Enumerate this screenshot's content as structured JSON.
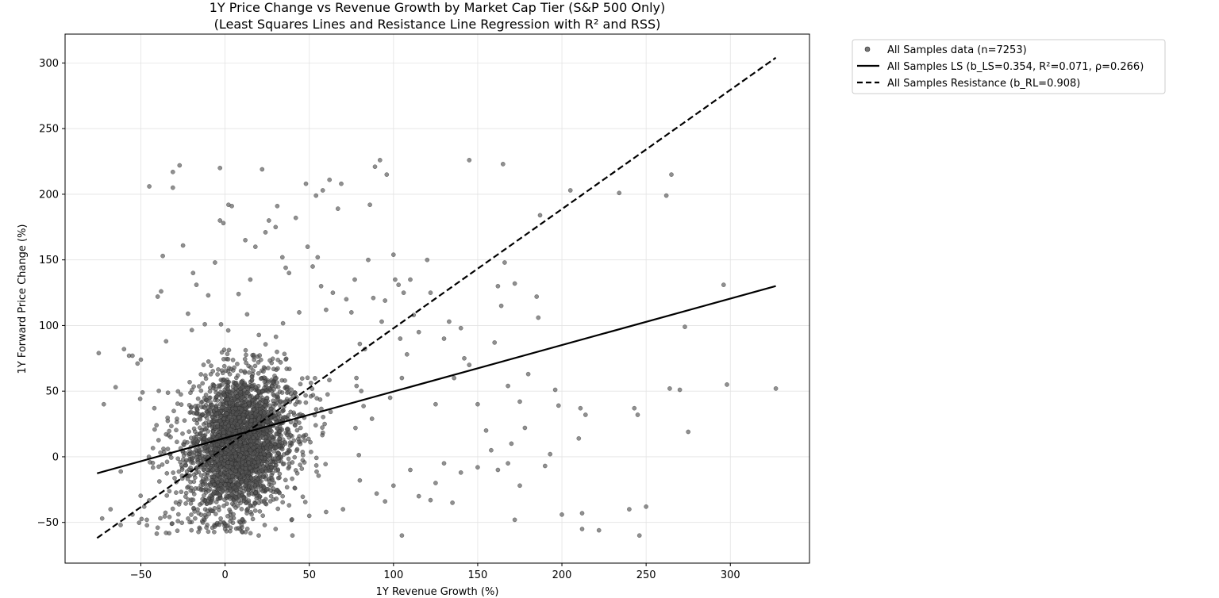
{
  "chart_data": {
    "type": "scatter",
    "title": "1Y Price Change vs Revenue Growth by Market Cap Tier (S&P 500 Only)",
    "subtitle": "(Least Squares Lines and Resistance Line Regression with R² and RSS)",
    "xlabel": "1Y Revenue Growth (%)",
    "ylabel": "1Y Forward Price Change (%)",
    "xlim": [
      -95,
      347
    ],
    "ylim": [
      -81,
      322
    ],
    "xticks": [
      -50,
      0,
      50,
      100,
      150,
      200,
      250,
      300
    ],
    "yticks": [
      -50,
      0,
      50,
      100,
      150,
      200,
      250,
      300
    ],
    "xtick_labels": [
      "−50",
      "0",
      "50",
      "100",
      "150",
      "200",
      "250",
      "300"
    ],
    "ytick_labels": [
      "−50",
      "0",
      "50",
      "100",
      "150",
      "200",
      "250",
      "300"
    ],
    "grid": true,
    "legend_position": "outside-top-right",
    "colors": {
      "points": "#555555",
      "lines": "#000000"
    },
    "series": [
      {
        "name": "All Samples data (n=7253)",
        "kind": "scatter",
        "sample_count": 7253,
        "outliers": [
          [
            -75,
            79
          ],
          [
            -72,
            40
          ],
          [
            -65,
            53
          ],
          [
            -60,
            82
          ],
          [
            -57,
            77
          ],
          [
            -55,
            77
          ],
          [
            -52,
            71
          ],
          [
            -50,
            74
          ],
          [
            -49,
            49
          ],
          [
            -45,
            206
          ],
          [
            -42,
            37
          ],
          [
            -40,
            122
          ],
          [
            -38,
            126
          ],
          [
            -37,
            153
          ],
          [
            -35,
            88
          ],
          [
            -31,
            217
          ],
          [
            -31,
            205
          ],
          [
            -27,
            222
          ],
          [
            -25,
            161
          ],
          [
            -22,
            109
          ],
          [
            -19,
            140
          ],
          [
            -17,
            131
          ],
          [
            -12,
            101
          ],
          [
            -10,
            123
          ],
          [
            -6,
            148
          ],
          [
            -3,
            180
          ],
          [
            -3,
            220
          ],
          [
            -1,
            178
          ],
          [
            2,
            192
          ],
          [
            4,
            191
          ],
          [
            8,
            124
          ],
          [
            12,
            165
          ],
          [
            15,
            135
          ],
          [
            18,
            160
          ],
          [
            22,
            219
          ],
          [
            24,
            171
          ],
          [
            26,
            180
          ],
          [
            30,
            175
          ],
          [
            31,
            191
          ],
          [
            34,
            152
          ],
          [
            36,
            144
          ],
          [
            38,
            140
          ],
          [
            42,
            182
          ],
          [
            44,
            110
          ],
          [
            48,
            208
          ],
          [
            49,
            160
          ],
          [
            52,
            145
          ],
          [
            54,
            199
          ],
          [
            55,
            152
          ],
          [
            57,
            130
          ],
          [
            58,
            203
          ],
          [
            60,
            112
          ],
          [
            62,
            211
          ],
          [
            64,
            125
          ],
          [
            67,
            189
          ],
          [
            69,
            208
          ],
          [
            72,
            120
          ],
          [
            75,
            110
          ],
          [
            77,
            135
          ],
          [
            78,
            60
          ],
          [
            80,
            86
          ],
          [
            83,
            82
          ],
          [
            85,
            150
          ],
          [
            86,
            192
          ],
          [
            88,
            121
          ],
          [
            89,
            221
          ],
          [
            92,
            226
          ],
          [
            93,
            103
          ],
          [
            95,
            119
          ],
          [
            96,
            215
          ],
          [
            98,
            45
          ],
          [
            100,
            154
          ],
          [
            101,
            135
          ],
          [
            103,
            131
          ],
          [
            104,
            90
          ],
          [
            105,
            60
          ],
          [
            106,
            125
          ],
          [
            108,
            78
          ],
          [
            110,
            135
          ],
          [
            112,
            108
          ],
          [
            115,
            95
          ],
          [
            120,
            150
          ],
          [
            122,
            125
          ],
          [
            125,
            40
          ],
          [
            130,
            90
          ],
          [
            133,
            103
          ],
          [
            136,
            60
          ],
          [
            140,
            98
          ],
          [
            142,
            75
          ],
          [
            145,
            70
          ],
          [
            145,
            226
          ],
          [
            150,
            40
          ],
          [
            155,
            20
          ],
          [
            160,
            87
          ],
          [
            162,
            130
          ],
          [
            164,
            115
          ],
          [
            165,
            223
          ],
          [
            166,
            148
          ],
          [
            168,
            54
          ],
          [
            170,
            10
          ],
          [
            172,
            132
          ],
          [
            175,
            42
          ],
          [
            178,
            22
          ],
          [
            180,
            63
          ],
          [
            185,
            122
          ],
          [
            186,
            106
          ],
          [
            187,
            184
          ],
          [
            190,
            -7
          ],
          [
            193,
            2
          ],
          [
            196,
            51
          ],
          [
            198,
            39
          ],
          [
            200,
            -44
          ],
          [
            205,
            203
          ],
          [
            210,
            14
          ],
          [
            211,
            37
          ],
          [
            212,
            -43
          ],
          [
            212,
            -55
          ],
          [
            214,
            32
          ],
          [
            222,
            -56
          ],
          [
            234,
            201
          ],
          [
            240,
            -40
          ],
          [
            243,
            37
          ],
          [
            245,
            32
          ],
          [
            246,
            -60
          ],
          [
            250,
            -38
          ],
          [
            262,
            199
          ],
          [
            264,
            52
          ],
          [
            265,
            215
          ],
          [
            270,
            51
          ],
          [
            273,
            99
          ],
          [
            275,
            19
          ],
          [
            296,
            131
          ],
          [
            298,
            55
          ],
          [
            327,
            52
          ],
          [
            -73,
            -47
          ],
          [
            -68,
            -40
          ],
          [
            -62,
            -52
          ],
          [
            -55,
            -44
          ],
          [
            -48,
            -38
          ],
          [
            -40,
            -54
          ],
          [
            -35,
            -58
          ],
          [
            -28,
            -49
          ],
          [
            -20,
            -56
          ],
          [
            -10,
            -57
          ],
          [
            0,
            -55
          ],
          [
            10,
            -57
          ],
          [
            20,
            -60
          ],
          [
            30,
            -55
          ],
          [
            40,
            -60
          ],
          [
            50,
            -45
          ],
          [
            60,
            -42
          ],
          [
            70,
            -40
          ],
          [
            80,
            -18
          ],
          [
            90,
            -28
          ],
          [
            95,
            -34
          ],
          [
            100,
            -22
          ],
          [
            105,
            -60
          ],
          [
            110,
            -10
          ],
          [
            115,
            -30
          ],
          [
            122,
            -33
          ],
          [
            125,
            -20
          ],
          [
            130,
            -5
          ],
          [
            135,
            -35
          ],
          [
            140,
            -12
          ],
          [
            150,
            -8
          ],
          [
            158,
            5
          ],
          [
            162,
            -10
          ],
          [
            168,
            -5
          ],
          [
            172,
            -48
          ],
          [
            175,
            -22
          ]
        ]
      },
      {
        "name": "All Samples LS (b_LS=0.354, R²=0.071, ρ=0.266)",
        "kind": "line",
        "style": "solid",
        "slope": 0.354,
        "intercept": 14.3,
        "x_range": [
          -76,
          327
        ]
      },
      {
        "name": "All Samples Resistance (b_RL=0.908)",
        "kind": "line",
        "style": "dashed",
        "slope": 0.908,
        "intercept": 7.1,
        "x_range": [
          -76,
          327
        ]
      }
    ]
  }
}
